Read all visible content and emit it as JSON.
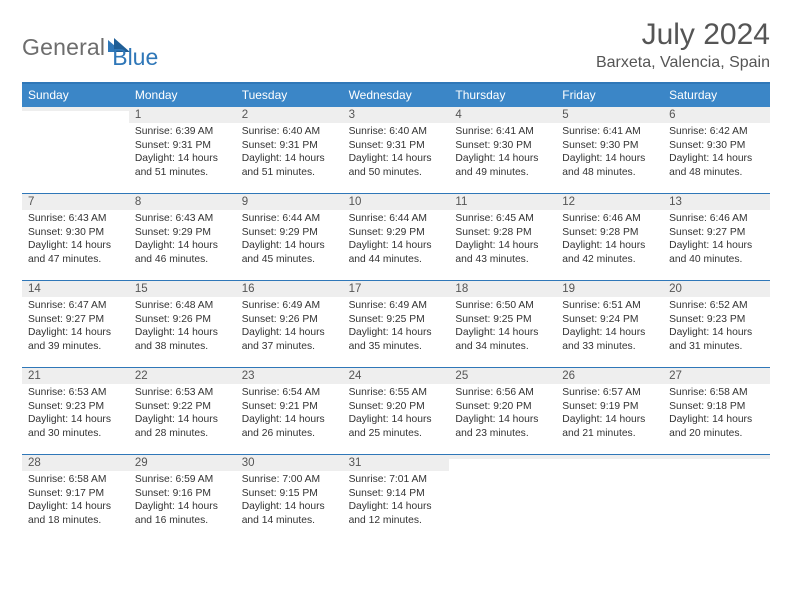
{
  "brand": {
    "part1": "General",
    "part2": "Blue"
  },
  "title": {
    "month": "July 2024",
    "location": "Barxeta, Valencia, Spain"
  },
  "colors": {
    "accent": "#2f77b8",
    "header_bg": "#3b86c7",
    "daynum_bg": "#eeeeee",
    "text_main": "#333333",
    "text_muted": "#555555"
  },
  "fonts": {
    "title_size": 30,
    "location_size": 16,
    "dayheader_size": 12,
    "body_size": 10.3
  },
  "day_names": [
    "Sunday",
    "Monday",
    "Tuesday",
    "Wednesday",
    "Thursday",
    "Friday",
    "Saturday"
  ],
  "weeks": [
    [
      {
        "n": "",
        "sunrise": "",
        "sunset": "",
        "daylight": ""
      },
      {
        "n": "1",
        "sunrise": "Sunrise: 6:39 AM",
        "sunset": "Sunset: 9:31 PM",
        "daylight": "Daylight: 14 hours and 51 minutes."
      },
      {
        "n": "2",
        "sunrise": "Sunrise: 6:40 AM",
        "sunset": "Sunset: 9:31 PM",
        "daylight": "Daylight: 14 hours and 51 minutes."
      },
      {
        "n": "3",
        "sunrise": "Sunrise: 6:40 AM",
        "sunset": "Sunset: 9:31 PM",
        "daylight": "Daylight: 14 hours and 50 minutes."
      },
      {
        "n": "4",
        "sunrise": "Sunrise: 6:41 AM",
        "sunset": "Sunset: 9:30 PM",
        "daylight": "Daylight: 14 hours and 49 minutes."
      },
      {
        "n": "5",
        "sunrise": "Sunrise: 6:41 AM",
        "sunset": "Sunset: 9:30 PM",
        "daylight": "Daylight: 14 hours and 48 minutes."
      },
      {
        "n": "6",
        "sunrise": "Sunrise: 6:42 AM",
        "sunset": "Sunset: 9:30 PM",
        "daylight": "Daylight: 14 hours and 48 minutes."
      }
    ],
    [
      {
        "n": "7",
        "sunrise": "Sunrise: 6:43 AM",
        "sunset": "Sunset: 9:30 PM",
        "daylight": "Daylight: 14 hours and 47 minutes."
      },
      {
        "n": "8",
        "sunrise": "Sunrise: 6:43 AM",
        "sunset": "Sunset: 9:29 PM",
        "daylight": "Daylight: 14 hours and 46 minutes."
      },
      {
        "n": "9",
        "sunrise": "Sunrise: 6:44 AM",
        "sunset": "Sunset: 9:29 PM",
        "daylight": "Daylight: 14 hours and 45 minutes."
      },
      {
        "n": "10",
        "sunrise": "Sunrise: 6:44 AM",
        "sunset": "Sunset: 9:29 PM",
        "daylight": "Daylight: 14 hours and 44 minutes."
      },
      {
        "n": "11",
        "sunrise": "Sunrise: 6:45 AM",
        "sunset": "Sunset: 9:28 PM",
        "daylight": "Daylight: 14 hours and 43 minutes."
      },
      {
        "n": "12",
        "sunrise": "Sunrise: 6:46 AM",
        "sunset": "Sunset: 9:28 PM",
        "daylight": "Daylight: 14 hours and 42 minutes."
      },
      {
        "n": "13",
        "sunrise": "Sunrise: 6:46 AM",
        "sunset": "Sunset: 9:27 PM",
        "daylight": "Daylight: 14 hours and 40 minutes."
      }
    ],
    [
      {
        "n": "14",
        "sunrise": "Sunrise: 6:47 AM",
        "sunset": "Sunset: 9:27 PM",
        "daylight": "Daylight: 14 hours and 39 minutes."
      },
      {
        "n": "15",
        "sunrise": "Sunrise: 6:48 AM",
        "sunset": "Sunset: 9:26 PM",
        "daylight": "Daylight: 14 hours and 38 minutes."
      },
      {
        "n": "16",
        "sunrise": "Sunrise: 6:49 AM",
        "sunset": "Sunset: 9:26 PM",
        "daylight": "Daylight: 14 hours and 37 minutes."
      },
      {
        "n": "17",
        "sunrise": "Sunrise: 6:49 AM",
        "sunset": "Sunset: 9:25 PM",
        "daylight": "Daylight: 14 hours and 35 minutes."
      },
      {
        "n": "18",
        "sunrise": "Sunrise: 6:50 AM",
        "sunset": "Sunset: 9:25 PM",
        "daylight": "Daylight: 14 hours and 34 minutes."
      },
      {
        "n": "19",
        "sunrise": "Sunrise: 6:51 AM",
        "sunset": "Sunset: 9:24 PM",
        "daylight": "Daylight: 14 hours and 33 minutes."
      },
      {
        "n": "20",
        "sunrise": "Sunrise: 6:52 AM",
        "sunset": "Sunset: 9:23 PM",
        "daylight": "Daylight: 14 hours and 31 minutes."
      }
    ],
    [
      {
        "n": "21",
        "sunrise": "Sunrise: 6:53 AM",
        "sunset": "Sunset: 9:23 PM",
        "daylight": "Daylight: 14 hours and 30 minutes."
      },
      {
        "n": "22",
        "sunrise": "Sunrise: 6:53 AM",
        "sunset": "Sunset: 9:22 PM",
        "daylight": "Daylight: 14 hours and 28 minutes."
      },
      {
        "n": "23",
        "sunrise": "Sunrise: 6:54 AM",
        "sunset": "Sunset: 9:21 PM",
        "daylight": "Daylight: 14 hours and 26 minutes."
      },
      {
        "n": "24",
        "sunrise": "Sunrise: 6:55 AM",
        "sunset": "Sunset: 9:20 PM",
        "daylight": "Daylight: 14 hours and 25 minutes."
      },
      {
        "n": "25",
        "sunrise": "Sunrise: 6:56 AM",
        "sunset": "Sunset: 9:20 PM",
        "daylight": "Daylight: 14 hours and 23 minutes."
      },
      {
        "n": "26",
        "sunrise": "Sunrise: 6:57 AM",
        "sunset": "Sunset: 9:19 PM",
        "daylight": "Daylight: 14 hours and 21 minutes."
      },
      {
        "n": "27",
        "sunrise": "Sunrise: 6:58 AM",
        "sunset": "Sunset: 9:18 PM",
        "daylight": "Daylight: 14 hours and 20 minutes."
      }
    ],
    [
      {
        "n": "28",
        "sunrise": "Sunrise: 6:58 AM",
        "sunset": "Sunset: 9:17 PM",
        "daylight": "Daylight: 14 hours and 18 minutes."
      },
      {
        "n": "29",
        "sunrise": "Sunrise: 6:59 AM",
        "sunset": "Sunset: 9:16 PM",
        "daylight": "Daylight: 14 hours and 16 minutes."
      },
      {
        "n": "30",
        "sunrise": "Sunrise: 7:00 AM",
        "sunset": "Sunset: 9:15 PM",
        "daylight": "Daylight: 14 hours and 14 minutes."
      },
      {
        "n": "31",
        "sunrise": "Sunrise: 7:01 AM",
        "sunset": "Sunset: 9:14 PM",
        "daylight": "Daylight: 14 hours and 12 minutes."
      },
      {
        "n": "",
        "sunrise": "",
        "sunset": "",
        "daylight": ""
      },
      {
        "n": "",
        "sunrise": "",
        "sunset": "",
        "daylight": ""
      },
      {
        "n": "",
        "sunrise": "",
        "sunset": "",
        "daylight": ""
      }
    ]
  ]
}
